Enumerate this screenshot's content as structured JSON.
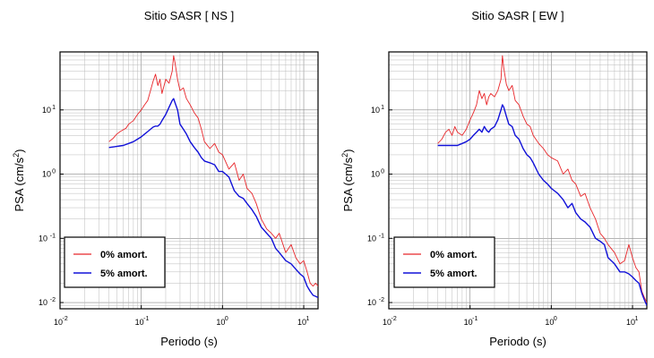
{
  "colors": {
    "series0": "#e8262a",
    "series5": "#1010d8"
  },
  "chart_data": [
    {
      "type": "line",
      "title": "Sitio SASR [ NS ]",
      "xlabel": "Periodo (s)",
      "ylabel_base": "PSA (cm/s",
      "ylabel_sup": "2",
      "ylabel_end": ")",
      "xscale": "log",
      "yscale": "log",
      "xlim": [
        0.01,
        15
      ],
      "ylim": [
        0.008,
        80
      ],
      "grid": true,
      "legend": "bottom-left",
      "xticks": [
        {
          "base": "10",
          "exp": "-2",
          "v": 0.01
        },
        {
          "base": "10",
          "exp": "-1",
          "v": 0.1
        },
        {
          "base": "10",
          "exp": "0",
          "v": 1
        },
        {
          "base": "10",
          "exp": "1",
          "v": 10
        }
      ],
      "yticks": [
        {
          "base": "10",
          "exp": "-2",
          "v": 0.01
        },
        {
          "base": "10",
          "exp": "-1",
          "v": 0.1
        },
        {
          "base": "10",
          "exp": "0",
          "v": 1
        },
        {
          "base": "10",
          "exp": "1",
          "v": 10
        }
      ],
      "series": [
        {
          "name": "0% amort.",
          "color": "#e8262a",
          "x": [
            0.04,
            0.045,
            0.05,
            0.055,
            0.06,
            0.065,
            0.07,
            0.08,
            0.09,
            0.1,
            0.11,
            0.12,
            0.13,
            0.14,
            0.15,
            0.16,
            0.17,
            0.18,
            0.2,
            0.22,
            0.24,
            0.25,
            0.26,
            0.28,
            0.3,
            0.33,
            0.36,
            0.4,
            0.45,
            0.5,
            0.55,
            0.6,
            0.7,
            0.8,
            0.9,
            1.0,
            1.2,
            1.4,
            1.6,
            1.8,
            2.0,
            2.3,
            2.6,
            3.0,
            3.5,
            4.0,
            4.5,
            5.0,
            6.0,
            7.0,
            8.0,
            9.0,
            10.0,
            11.0,
            12.0,
            13.0,
            14.0,
            15.0
          ],
          "y": [
            3.2,
            3.6,
            4.2,
            4.6,
            4.9,
            5.2,
            6.0,
            6.8,
            8.5,
            10.0,
            12.0,
            14.0,
            20.0,
            28.0,
            36.0,
            24.0,
            30.0,
            18.0,
            30.0,
            26.0,
            40.0,
            70.0,
            55.0,
            30.0,
            20.0,
            22.0,
            15.0,
            12.0,
            9.0,
            7.5,
            5.0,
            3.2,
            2.5,
            3.0,
            2.2,
            2.0,
            1.2,
            1.5,
            0.8,
            1.0,
            0.6,
            0.5,
            0.35,
            0.2,
            0.14,
            0.12,
            0.1,
            0.12,
            0.06,
            0.08,
            0.05,
            0.04,
            0.045,
            0.03,
            0.02,
            0.018,
            0.02,
            0.018
          ]
        },
        {
          "name": "5% amort.",
          "color": "#1010d8",
          "x": [
            0.04,
            0.045,
            0.05,
            0.055,
            0.06,
            0.065,
            0.07,
            0.08,
            0.09,
            0.1,
            0.11,
            0.12,
            0.13,
            0.14,
            0.15,
            0.16,
            0.17,
            0.18,
            0.2,
            0.22,
            0.24,
            0.25,
            0.26,
            0.28,
            0.3,
            0.33,
            0.36,
            0.4,
            0.45,
            0.5,
            0.55,
            0.6,
            0.7,
            0.8,
            0.9,
            1.0,
            1.2,
            1.4,
            1.6,
            1.8,
            2.0,
            2.3,
            2.6,
            3.0,
            3.5,
            4.0,
            4.5,
            5.0,
            6.0,
            7.0,
            8.0,
            9.0,
            10.0,
            11.0,
            12.0,
            13.0,
            14.0,
            15.0
          ],
          "y": [
            2.6,
            2.65,
            2.7,
            2.75,
            2.8,
            2.9,
            3.0,
            3.2,
            3.5,
            3.8,
            4.2,
            4.6,
            5.0,
            5.4,
            5.6,
            5.6,
            6.0,
            6.8,
            8.5,
            11.0,
            14.0,
            15.0,
            13.0,
            10.0,
            6.0,
            5.0,
            4.2,
            3.2,
            2.6,
            2.2,
            1.8,
            1.6,
            1.5,
            1.4,
            1.1,
            1.1,
            0.9,
            0.55,
            0.45,
            0.42,
            0.35,
            0.28,
            0.22,
            0.15,
            0.12,
            0.1,
            0.07,
            0.06,
            0.045,
            0.04,
            0.033,
            0.028,
            0.025,
            0.018,
            0.015,
            0.013,
            0.0125,
            0.012
          ]
        }
      ]
    },
    {
      "type": "line",
      "title": "Sitio SASR [ EW ]",
      "xlabel": "Periodo (s)",
      "ylabel_base": "PSA (cm/s",
      "ylabel_sup": "2",
      "ylabel_end": ")",
      "xscale": "log",
      "yscale": "log",
      "xlim": [
        0.01,
        15
      ],
      "ylim": [
        0.008,
        80
      ],
      "grid": true,
      "legend": "bottom-left",
      "xticks": [
        {
          "base": "10",
          "exp": "-2",
          "v": 0.01
        },
        {
          "base": "10",
          "exp": "-1",
          "v": 0.1
        },
        {
          "base": "10",
          "exp": "0",
          "v": 1
        },
        {
          "base": "10",
          "exp": "1",
          "v": 10
        }
      ],
      "yticks": [
        {
          "base": "10",
          "exp": "-2",
          "v": 0.01
        },
        {
          "base": "10",
          "exp": "-1",
          "v": 0.1
        },
        {
          "base": "10",
          "exp": "0",
          "v": 1
        },
        {
          "base": "10",
          "exp": "1",
          "v": 10
        }
      ],
      "series": [
        {
          "name": "0% amort.",
          "color": "#e8262a",
          "x": [
            0.04,
            0.045,
            0.05,
            0.055,
            0.06,
            0.065,
            0.07,
            0.08,
            0.09,
            0.1,
            0.11,
            0.12,
            0.13,
            0.14,
            0.15,
            0.16,
            0.17,
            0.18,
            0.2,
            0.22,
            0.24,
            0.25,
            0.26,
            0.28,
            0.3,
            0.33,
            0.36,
            0.4,
            0.45,
            0.5,
            0.55,
            0.6,
            0.7,
            0.8,
            0.9,
            1.0,
            1.2,
            1.4,
            1.6,
            1.8,
            2.0,
            2.3,
            2.6,
            3.0,
            3.5,
            4.0,
            4.5,
            5.0,
            6.0,
            7.0,
            8.0,
            9.0,
            10.0,
            11.0,
            12.0,
            13.0,
            14.0,
            15.0
          ],
          "y": [
            3.0,
            3.5,
            4.5,
            5.0,
            4.0,
            5.5,
            4.5,
            4.0,
            5.0,
            7.0,
            9.0,
            12.0,
            20.0,
            15.0,
            18.0,
            12.0,
            16.0,
            18.0,
            16.0,
            20.0,
            30.0,
            70.0,
            45.0,
            25.0,
            20.0,
            24.0,
            14.0,
            12.0,
            8.0,
            6.0,
            5.5,
            4.0,
            3.0,
            2.5,
            2.0,
            1.8,
            1.6,
            1.0,
            1.2,
            0.8,
            0.7,
            0.45,
            0.5,
            0.3,
            0.2,
            0.12,
            0.1,
            0.08,
            0.06,
            0.04,
            0.045,
            0.08,
            0.05,
            0.035,
            0.03,
            0.015,
            0.012,
            0.01
          ]
        },
        {
          "name": "5% amort.",
          "color": "#1010d8",
          "x": [
            0.04,
            0.045,
            0.05,
            0.055,
            0.06,
            0.065,
            0.07,
            0.08,
            0.09,
            0.1,
            0.11,
            0.12,
            0.13,
            0.14,
            0.15,
            0.16,
            0.17,
            0.18,
            0.2,
            0.22,
            0.24,
            0.25,
            0.26,
            0.28,
            0.3,
            0.33,
            0.36,
            0.4,
            0.45,
            0.5,
            0.55,
            0.6,
            0.7,
            0.8,
            0.9,
            1.0,
            1.2,
            1.4,
            1.6,
            1.8,
            2.0,
            2.3,
            2.6,
            3.0,
            3.5,
            4.0,
            4.5,
            5.0,
            6.0,
            7.0,
            8.0,
            9.0,
            10.0,
            11.0,
            12.0,
            13.0,
            14.0,
            15.0
          ],
          "y": [
            2.8,
            2.8,
            2.8,
            2.8,
            2.8,
            2.8,
            2.8,
            3.0,
            3.2,
            3.5,
            4.0,
            4.5,
            5.0,
            4.5,
            5.5,
            4.8,
            4.5,
            5.0,
            5.5,
            7.0,
            10.0,
            12.0,
            11.0,
            8.0,
            6.0,
            5.5,
            4.0,
            3.5,
            2.5,
            2.0,
            1.8,
            1.5,
            1.0,
            0.8,
            0.7,
            0.6,
            0.5,
            0.4,
            0.3,
            0.35,
            0.25,
            0.2,
            0.18,
            0.15,
            0.1,
            0.09,
            0.08,
            0.05,
            0.04,
            0.03,
            0.03,
            0.028,
            0.025,
            0.022,
            0.02,
            0.014,
            0.011,
            0.009
          ]
        }
      ]
    }
  ]
}
